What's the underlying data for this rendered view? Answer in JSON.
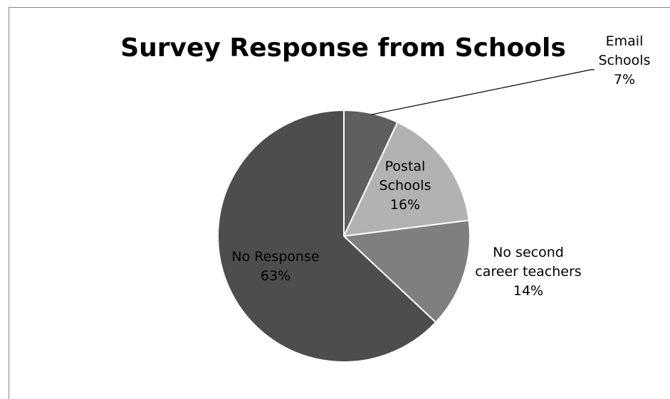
{
  "chart_data": {
    "type": "pie",
    "title": "Survey Response from Schools",
    "slices": [
      {
        "label_lines": [
          "Email",
          "Schools"
        ],
        "percent_label": "7%",
        "value": 7,
        "color": "#5f5f5f"
      },
      {
        "label_lines": [
          "Postal",
          "Schools"
        ],
        "percent_label": "16%",
        "value": 16,
        "color": "#b2b2b2"
      },
      {
        "label_lines": [
          "No second",
          "career teachers"
        ],
        "percent_label": "14%",
        "value": 14,
        "color": "#7f7f7f"
      },
      {
        "label_lines": [
          "No Response"
        ],
        "percent_label": "63%",
        "value": 63,
        "color": "#4d4d4d"
      }
    ],
    "legend": "none",
    "grid": false
  }
}
